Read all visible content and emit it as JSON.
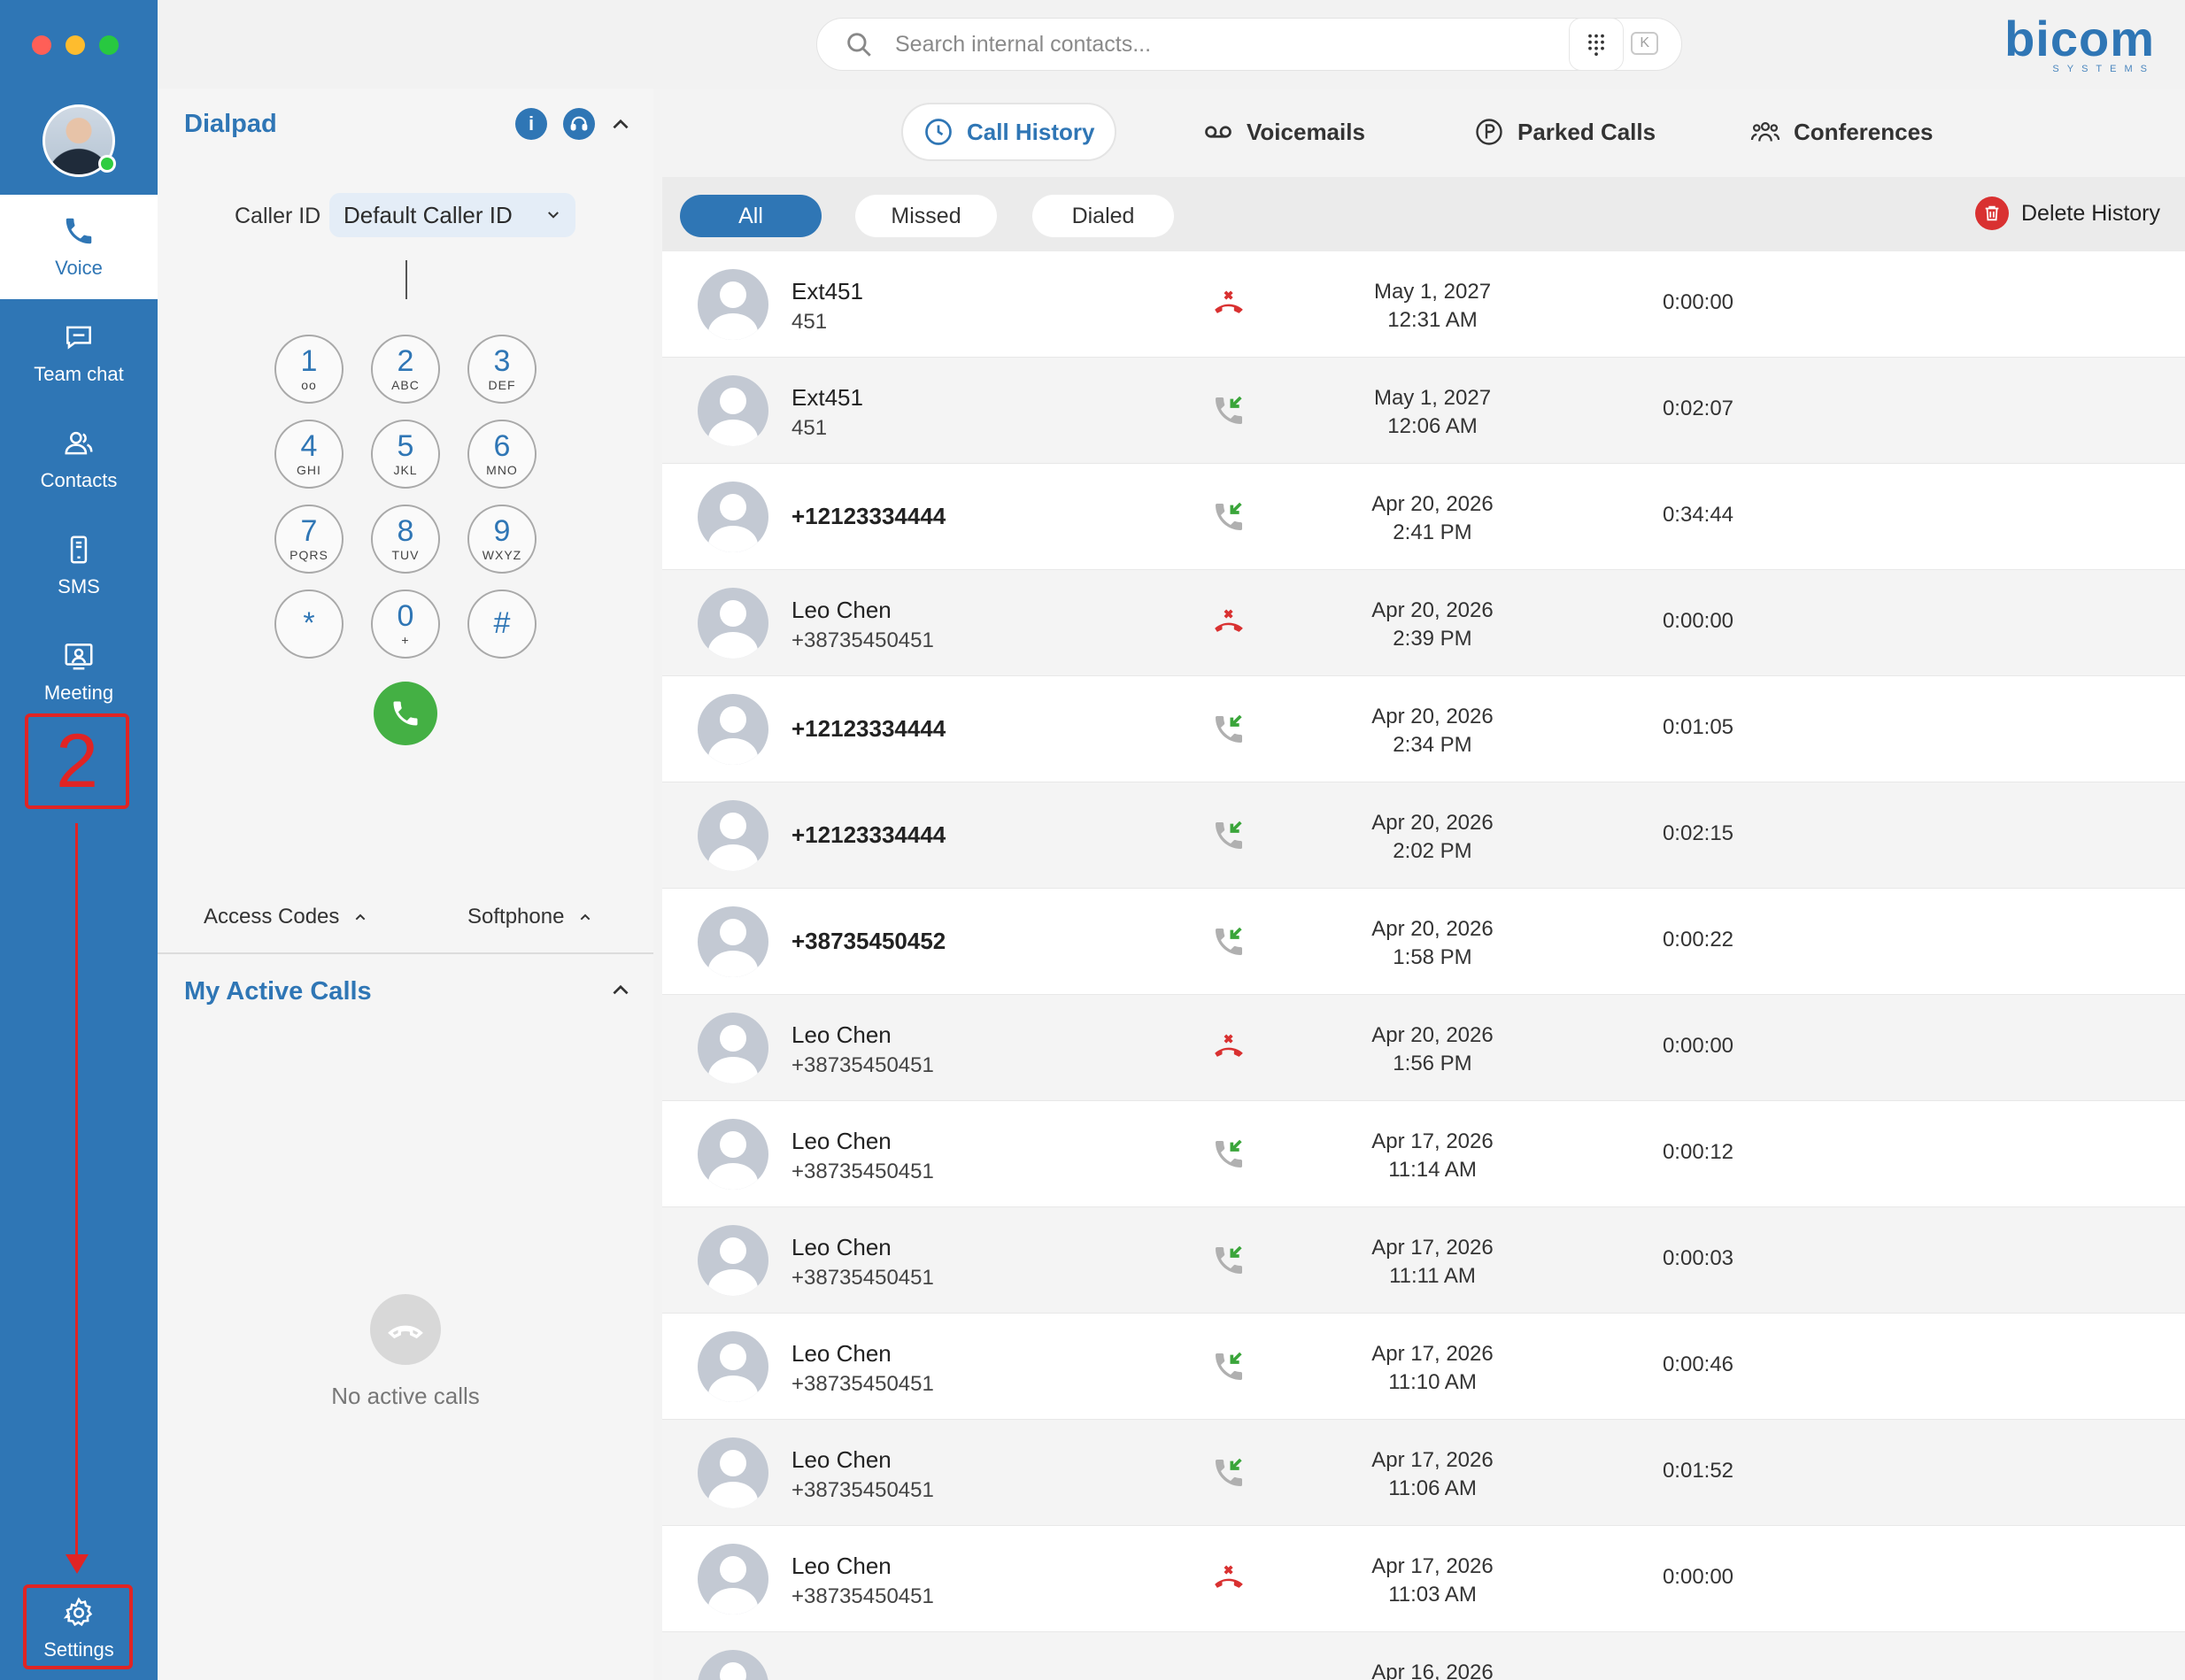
{
  "sidebar": {
    "items": [
      {
        "label": "Voice",
        "icon": "phone-icon"
      },
      {
        "label": "Team chat",
        "icon": "chat-icon"
      },
      {
        "label": "Contacts",
        "icon": "contacts-icon"
      },
      {
        "label": "SMS",
        "icon": "mobile-icon"
      },
      {
        "label": "Meeting",
        "icon": "meeting-icon"
      }
    ],
    "settings_label": "Settings",
    "annotation_number": "2"
  },
  "search": {
    "placeholder": "Search internal contacts...",
    "shortcut_mod": "⌘",
    "shortcut_plus": "+",
    "shortcut_key": "K"
  },
  "logo": {
    "main": "bicom",
    "sub": "SYSTEMS"
  },
  "dialpad": {
    "title": "Dialpad",
    "info_icon_label": "i",
    "caller_id_label": "Caller ID",
    "caller_id_value": "Default Caller ID",
    "keys": [
      {
        "digit": "1",
        "letters": "oo"
      },
      {
        "digit": "2",
        "letters": "ABC"
      },
      {
        "digit": "3",
        "letters": "DEF"
      },
      {
        "digit": "4",
        "letters": "GHI"
      },
      {
        "digit": "5",
        "letters": "JKL"
      },
      {
        "digit": "6",
        "letters": "MNO"
      },
      {
        "digit": "7",
        "letters": "PQRS"
      },
      {
        "digit": "8",
        "letters": "TUV"
      },
      {
        "digit": "9",
        "letters": "WXYZ"
      },
      {
        "digit": "*",
        "letters": ""
      },
      {
        "digit": "0",
        "letters": "+"
      },
      {
        "digit": "#",
        "letters": ""
      }
    ],
    "access_codes_label": "Access Codes",
    "softphone_label": "Softphone"
  },
  "active_calls": {
    "title": "My Active Calls",
    "empty_text": "No active calls"
  },
  "tabs": [
    {
      "label": "Call History",
      "icon": "clock-icon"
    },
    {
      "label": "Voicemails",
      "icon": "voicemail-icon"
    },
    {
      "label": "Parked Calls",
      "icon": "parked-icon"
    },
    {
      "label": "Conferences",
      "icon": "conference-icon"
    }
  ],
  "filters": {
    "all": "All",
    "missed": "Missed",
    "dialed": "Dialed",
    "delete_label": "Delete History"
  },
  "colors": {
    "brand": "#2f76b5",
    "missed": "#d93131",
    "incoming": "#3aa53a",
    "annotation": "#e02424"
  },
  "calls": [
    {
      "name": "Ext451",
      "number": "451",
      "type": "missed",
      "date": "May 1, 2027",
      "time": "12:31 AM",
      "duration": "0:00:00"
    },
    {
      "name": "Ext451",
      "number": "451",
      "type": "incoming",
      "date": "May 1, 2027",
      "time": "12:06 AM",
      "duration": "0:02:07"
    },
    {
      "name": "+12123334444",
      "number": "",
      "type": "incoming",
      "date": "Apr 20, 2026",
      "time": "2:41 PM",
      "duration": "0:34:44"
    },
    {
      "name": "Leo Chen",
      "number": "+38735450451",
      "type": "missed",
      "date": "Apr 20, 2026",
      "time": "2:39 PM",
      "duration": "0:00:00"
    },
    {
      "name": "+12123334444",
      "number": "",
      "type": "incoming",
      "date": "Apr 20, 2026",
      "time": "2:34 PM",
      "duration": "0:01:05"
    },
    {
      "name": "+12123334444",
      "number": "",
      "type": "incoming",
      "date": "Apr 20, 2026",
      "time": "2:02 PM",
      "duration": "0:02:15"
    },
    {
      "name": "+38735450452",
      "number": "",
      "type": "incoming",
      "date": "Apr 20, 2026",
      "time": "1:58 PM",
      "duration": "0:00:22"
    },
    {
      "name": "Leo Chen",
      "number": "+38735450451",
      "type": "missed",
      "date": "Apr 20, 2026",
      "time": "1:56 PM",
      "duration": "0:00:00"
    },
    {
      "name": "Leo Chen",
      "number": "+38735450451",
      "type": "incoming",
      "date": "Apr 17, 2026",
      "time": "11:14 AM",
      "duration": "0:00:12"
    },
    {
      "name": "Leo Chen",
      "number": "+38735450451",
      "type": "incoming",
      "date": "Apr 17, 2026",
      "time": "11:11 AM",
      "duration": "0:00:03"
    },
    {
      "name": "Leo Chen",
      "number": "+38735450451",
      "type": "incoming",
      "date": "Apr 17, 2026",
      "time": "11:10 AM",
      "duration": "0:00:46"
    },
    {
      "name": "Leo Chen",
      "number": "+38735450451",
      "type": "incoming",
      "date": "Apr 17, 2026",
      "time": "11:06 AM",
      "duration": "0:01:52"
    },
    {
      "name": "Leo Chen",
      "number": "+38735450451",
      "type": "missed",
      "date": "Apr 17, 2026",
      "time": "11:03 AM",
      "duration": "0:00:00"
    },
    {
      "name": "",
      "number": "",
      "type": "",
      "date": "Apr 16, 2026",
      "time": "",
      "duration": ""
    }
  ]
}
